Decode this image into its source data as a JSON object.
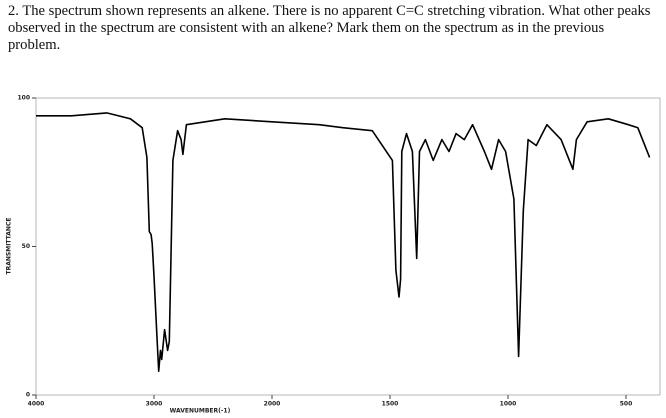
{
  "question": "2. The spectrum shown represents an alkene. There is no apparent C=C stretching vibration. What other peaks observed in the spectrum are consistent with an alkene? Mark them on the spectrum as in the previous problem.",
  "chart_data": {
    "type": "line",
    "color": "#000000",
    "xlabel": "WAVENUMBER(-1)",
    "ylabel": "TRANSMITTANCE",
    "x": [
      4000,
      3700,
      3400,
      3200,
      3100,
      3060,
      3040,
      3025,
      3015,
      3000,
      2975,
      2960,
      2945,
      2935,
      2910,
      2885,
      2870,
      2840,
      2800,
      2770,
      2755,
      2725,
      2400,
      2000,
      1800,
      1700,
      1575,
      1490,
      1475,
      1462,
      1455,
      1450,
      1430,
      1405,
      1387,
      1375,
      1350,
      1317,
      1280,
      1250,
      1220,
      1185,
      1150,
      1100,
      1070,
      1040,
      1010,
      975,
      955,
      935,
      915,
      880,
      835,
      775,
      725,
      710,
      665,
      575,
      490,
      450,
      400
    ],
    "values": [
      94,
      94,
      95,
      93,
      90,
      80,
      55,
      54,
      51,
      40,
      20,
      8,
      15,
      12,
      22,
      15,
      18,
      79,
      89,
      86,
      81,
      91,
      93,
      92,
      91,
      90,
      89,
      79,
      42,
      33,
      39,
      82,
      88,
      82,
      46,
      82,
      86,
      79,
      86,
      82,
      88,
      86,
      91,
      82,
      76,
      86,
      82,
      66,
      13,
      62,
      86,
      84,
      91,
      86,
      76,
      86,
      92,
      93,
      91,
      90,
      80
    ],
    "xlim": [
      4000,
      350
    ],
    "xticks": [
      4000,
      3000,
      2000,
      1500,
      1000,
      500
    ],
    "ylim": [
      0,
      100
    ],
    "yticks": [
      0,
      50,
      100
    ]
  }
}
